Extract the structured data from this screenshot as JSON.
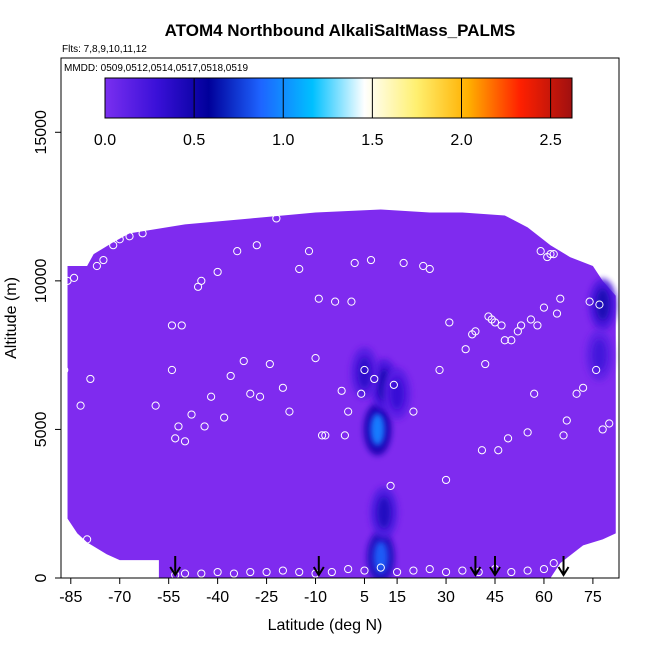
{
  "chart_data": {
    "type": "heatmap",
    "title": "ATOM4 Northbound AlkaliSaltMass_PALMS",
    "flights_label": "Flts: 7,8,9,10,11,12",
    "dates_label": "MMDD: 0509,0512,0514,0517,0518,0519",
    "xlabel": "Latitude (deg N)",
    "ylabel": "Altitude (m)",
    "xlim": [
      -88,
      83
    ],
    "ylim": [
      0,
      17500
    ],
    "x_ticks": [
      -85,
      -70,
      -55,
      -40,
      -25,
      -10,
      5,
      15,
      30,
      45,
      60,
      75
    ],
    "y_ticks": [
      0,
      5000,
      10000,
      15000
    ],
    "colorbar": {
      "range": [
        0,
        2.62
      ],
      "ticks": [
        0.0,
        0.5,
        1.0,
        1.5,
        2.0,
        2.5
      ],
      "tick_labels": [
        "0.0",
        "0.5",
        "1.0",
        "1.5",
        "2.0",
        "2.5"
      ],
      "colors": [
        "#7a2ff0",
        "#3a10d8",
        "#00009a",
        "#1e64ff",
        "#00c0ff",
        "#ffffff",
        "#fff070",
        "#ffb000",
        "#ff2000",
        "#a01010"
      ]
    },
    "background_value": 0.05,
    "background_color": "#7f2bef",
    "arrows_lat": [
      -53,
      -9,
      39,
      45,
      66
    ],
    "hotspots": [
      {
        "lat": 9,
        "alt": 5000,
        "value": 0.95
      },
      {
        "lat": 11,
        "alt": 6500,
        "value": 0.45
      },
      {
        "lat": 5,
        "alt": 6900,
        "value": 0.35
      },
      {
        "lat": 10,
        "alt": 700,
        "value": 0.85
      },
      {
        "lat": 11,
        "alt": 2200,
        "value": 0.4
      },
      {
        "lat": 15,
        "alt": 6200,
        "value": 0.3
      },
      {
        "lat": 78,
        "alt": 9200,
        "value": 0.45
      },
      {
        "lat": 77,
        "alt": 7500,
        "value": 0.25
      }
    ],
    "sample_points": [
      [
        -87,
        7000
      ],
      [
        -86,
        10000
      ],
      [
        -84,
        10100
      ],
      [
        -82,
        5800
      ],
      [
        -80,
        1300
      ],
      [
        -79,
        6700
      ],
      [
        -77,
        10500
      ],
      [
        -75,
        10700
      ],
      [
        -72,
        11200
      ],
      [
        -70,
        11400
      ],
      [
        -67,
        11500
      ],
      [
        -63,
        11600
      ],
      [
        -59,
        5800
      ],
      [
        -54,
        8500
      ],
      [
        -54,
        7000
      ],
      [
        -53,
        4700
      ],
      [
        -52,
        5100
      ],
      [
        -51,
        8500
      ],
      [
        -50,
        4600
      ],
      [
        -48,
        5500
      ],
      [
        -46,
        9800
      ],
      [
        -45,
        10000
      ],
      [
        -44,
        5100
      ],
      [
        -42,
        6100
      ],
      [
        -40,
        10300
      ],
      [
        -38,
        5400
      ],
      [
        -36,
        6800
      ],
      [
        -34,
        11000
      ],
      [
        -32,
        7300
      ],
      [
        -30,
        6200
      ],
      [
        -28,
        11200
      ],
      [
        -27,
        6100
      ],
      [
        -24,
        7200
      ],
      [
        -22,
        12100
      ],
      [
        -20,
        6400
      ],
      [
        -18,
        5600
      ],
      [
        -15,
        10400
      ],
      [
        -12,
        11000
      ],
      [
        -10,
        7400
      ],
      [
        -9,
        9400
      ],
      [
        -8,
        4800
      ],
      [
        -7,
        4800
      ],
      [
        -4,
        9300
      ],
      [
        -2,
        6300
      ],
      [
        -1,
        4800
      ],
      [
        0,
        5600
      ],
      [
        1,
        9300
      ],
      [
        2,
        10600
      ],
      [
        4,
        6200
      ],
      [
        5,
        7000
      ],
      [
        7,
        10700
      ],
      [
        8,
        6700
      ],
      [
        13,
        3100
      ],
      [
        14,
        6500
      ],
      [
        17,
        10600
      ],
      [
        20,
        5600
      ],
      [
        23,
        10500
      ],
      [
        25,
        10400
      ],
      [
        28,
        7000
      ],
      [
        30,
        3300
      ],
      [
        31,
        8600
      ],
      [
        36,
        7700
      ],
      [
        38,
        8200
      ],
      [
        39,
        8300
      ],
      [
        41,
        4300
      ],
      [
        42,
        7200
      ],
      [
        43,
        8800
      ],
      [
        44,
        8700
      ],
      [
        45,
        8600
      ],
      [
        46,
        4300
      ],
      [
        47,
        8500
      ],
      [
        48,
        8000
      ],
      [
        49,
        4700
      ],
      [
        50,
        8000
      ],
      [
        52,
        8300
      ],
      [
        53,
        8500
      ],
      [
        55,
        4900
      ],
      [
        56,
        8700
      ],
      [
        57,
        6200
      ],
      [
        58,
        8500
      ],
      [
        59,
        11000
      ],
      [
        60,
        9100
      ],
      [
        61,
        10800
      ],
      [
        62,
        10900
      ],
      [
        63,
        10900
      ],
      [
        64,
        8900
      ],
      [
        65,
        9400
      ],
      [
        66,
        4800
      ],
      [
        67,
        5300
      ],
      [
        70,
        6200
      ],
      [
        72,
        6400
      ],
      [
        74,
        9300
      ],
      [
        76,
        7000
      ],
      [
        77,
        9200
      ],
      [
        78,
        5000
      ],
      [
        80,
        5200
      ],
      [
        -53,
        100
      ],
      [
        -50,
        150
      ],
      [
        -45,
        150
      ],
      [
        -40,
        200
      ],
      [
        -35,
        150
      ],
      [
        -30,
        200
      ],
      [
        -25,
        200
      ],
      [
        -20,
        250
      ],
      [
        -15,
        200
      ],
      [
        -10,
        150
      ],
      [
        -5,
        200
      ],
      [
        0,
        300
      ],
      [
        5,
        250
      ],
      [
        10,
        350
      ],
      [
        15,
        200
      ],
      [
        20,
        250
      ],
      [
        25,
        300
      ],
      [
        30,
        200
      ],
      [
        35,
        250
      ],
      [
        40,
        200
      ],
      [
        45,
        300
      ],
      [
        50,
        200
      ],
      [
        55,
        250
      ],
      [
        60,
        300
      ],
      [
        63,
        500
      ],
      [
        65,
        250
      ],
      [
        70,
        200
      ],
      [
        75,
        300
      ],
      [
        80,
        200
      ]
    ]
  }
}
